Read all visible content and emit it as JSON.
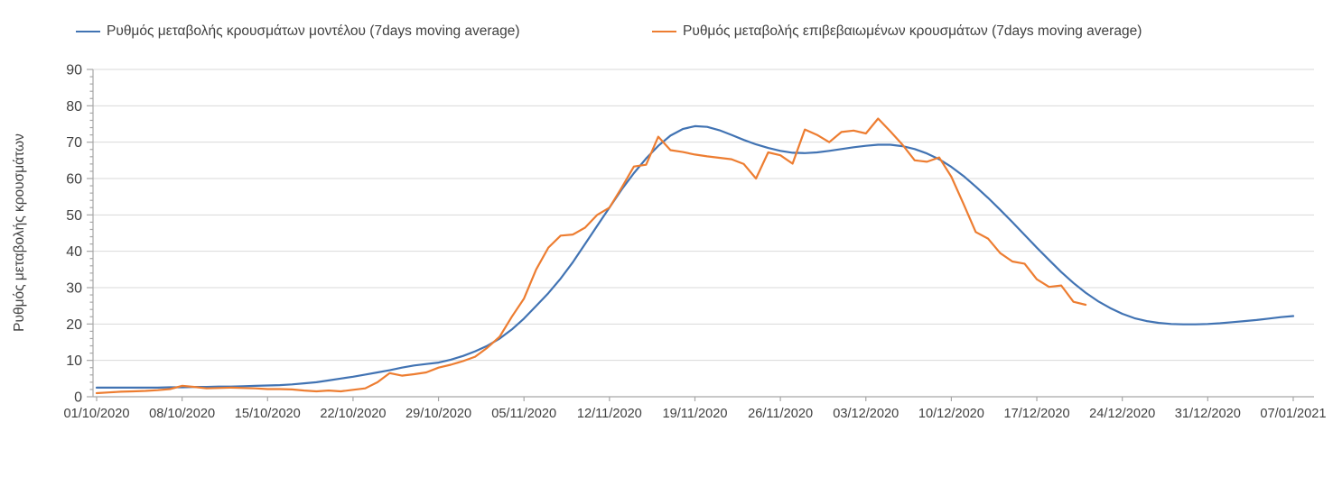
{
  "chart_data": {
    "type": "line",
    "title": "",
    "xlabel": "",
    "ylabel": "Ρυθμός μεταβολής κρουσμάτων",
    "ylim": [
      0,
      90
    ],
    "ytick_step": 10,
    "y_minor_tick_step": 2,
    "grid": "horizontal-major",
    "legend_position": "top",
    "x_unit": "days",
    "x_tick_every_days": 7,
    "x_tick_labels": [
      "01/10/2020",
      "08/10/2020",
      "15/10/2020",
      "22/10/2020",
      "29/10/2020",
      "05/11/2020",
      "12/11/2020",
      "19/11/2020",
      "26/11/2020",
      "03/12/2020",
      "10/12/2020",
      "17/12/2020",
      "24/12/2020",
      "31/12/2020",
      "07/01/2021"
    ],
    "colors": {
      "model_line": "#4173B3",
      "confirmed_line": "#ED7D31",
      "gridline": "#D9D9D9",
      "axis": "#A6A6A6",
      "text": "#404040"
    },
    "series": [
      {
        "name": "Ρυθμός μεταβολής κρουσμάτων μοντέλου (7days moving average)",
        "color": "#4173B3",
        "start_date": "01/10/2020",
        "end_date": "07/01/2021",
        "values": [
          2.5,
          2.5,
          2.5,
          2.5,
          2.5,
          2.5,
          2.6,
          2.6,
          2.7,
          2.7,
          2.8,
          2.8,
          2.9,
          3.0,
          3.1,
          3.2,
          3.4,
          3.7,
          4.0,
          4.5,
          5.0,
          5.5,
          6.1,
          6.7,
          7.3,
          8.0,
          8.6,
          9.0,
          9.4,
          10.2,
          11.2,
          12.5,
          14.0,
          16.0,
          18.5,
          21.5,
          25.0,
          28.5,
          32.5,
          37.0,
          42.0,
          47.0,
          52.0,
          57.0,
          61.5,
          65.5,
          69.0,
          71.8,
          73.6,
          74.4,
          74.2,
          73.3,
          72.0,
          70.6,
          69.4,
          68.4,
          67.6,
          67.1,
          67.0,
          67.2,
          67.6,
          68.1,
          68.6,
          69.0,
          69.3,
          69.3,
          68.9,
          68.1,
          66.9,
          65.3,
          63.2,
          60.7,
          57.8,
          54.7,
          51.4,
          48.0,
          44.5,
          41.0,
          37.6,
          34.3,
          31.3,
          28.6,
          26.3,
          24.4,
          22.8,
          21.6,
          20.8,
          20.3,
          20.0,
          19.9,
          19.9,
          20.0,
          20.2,
          20.5,
          20.8,
          21.1,
          21.5,
          21.9,
          22.2
        ]
      },
      {
        "name": "Ρυθμός μεταβολής επιβεβαιωμένων κρουσμάτων (7days moving average)",
        "color": "#ED7D31",
        "start_date": "01/10/2020",
        "end_date": "21/12/2020",
        "values": [
          1.0,
          1.2,
          1.4,
          1.5,
          1.6,
          1.8,
          2.1,
          3.0,
          2.7,
          2.3,
          2.4,
          2.5,
          2.4,
          2.3,
          2.1,
          2.1,
          2.0,
          1.7,
          1.5,
          1.7,
          1.5,
          1.9,
          2.3,
          4.0,
          6.5,
          5.8,
          6.2,
          6.7,
          8.0,
          8.8,
          9.8,
          11.0,
          13.5,
          16.5,
          22.0,
          27.0,
          35.0,
          41.0,
          44.3,
          44.6,
          46.5,
          50.0,
          52.0,
          57.5,
          63.3,
          63.8,
          71.5,
          67.8,
          67.3,
          66.6,
          66.1,
          65.7,
          65.3,
          64.0,
          60.0,
          67.2,
          66.4,
          64.1,
          73.5,
          72.0,
          70.0,
          72.8,
          73.2,
          72.4,
          76.5,
          73.0,
          69.3,
          65.0,
          64.6,
          65.8,
          60.5,
          53.0,
          45.3,
          43.5,
          39.5,
          37.2,
          36.6,
          32.3,
          30.2,
          30.6,
          26.1,
          25.3
        ]
      }
    ]
  }
}
